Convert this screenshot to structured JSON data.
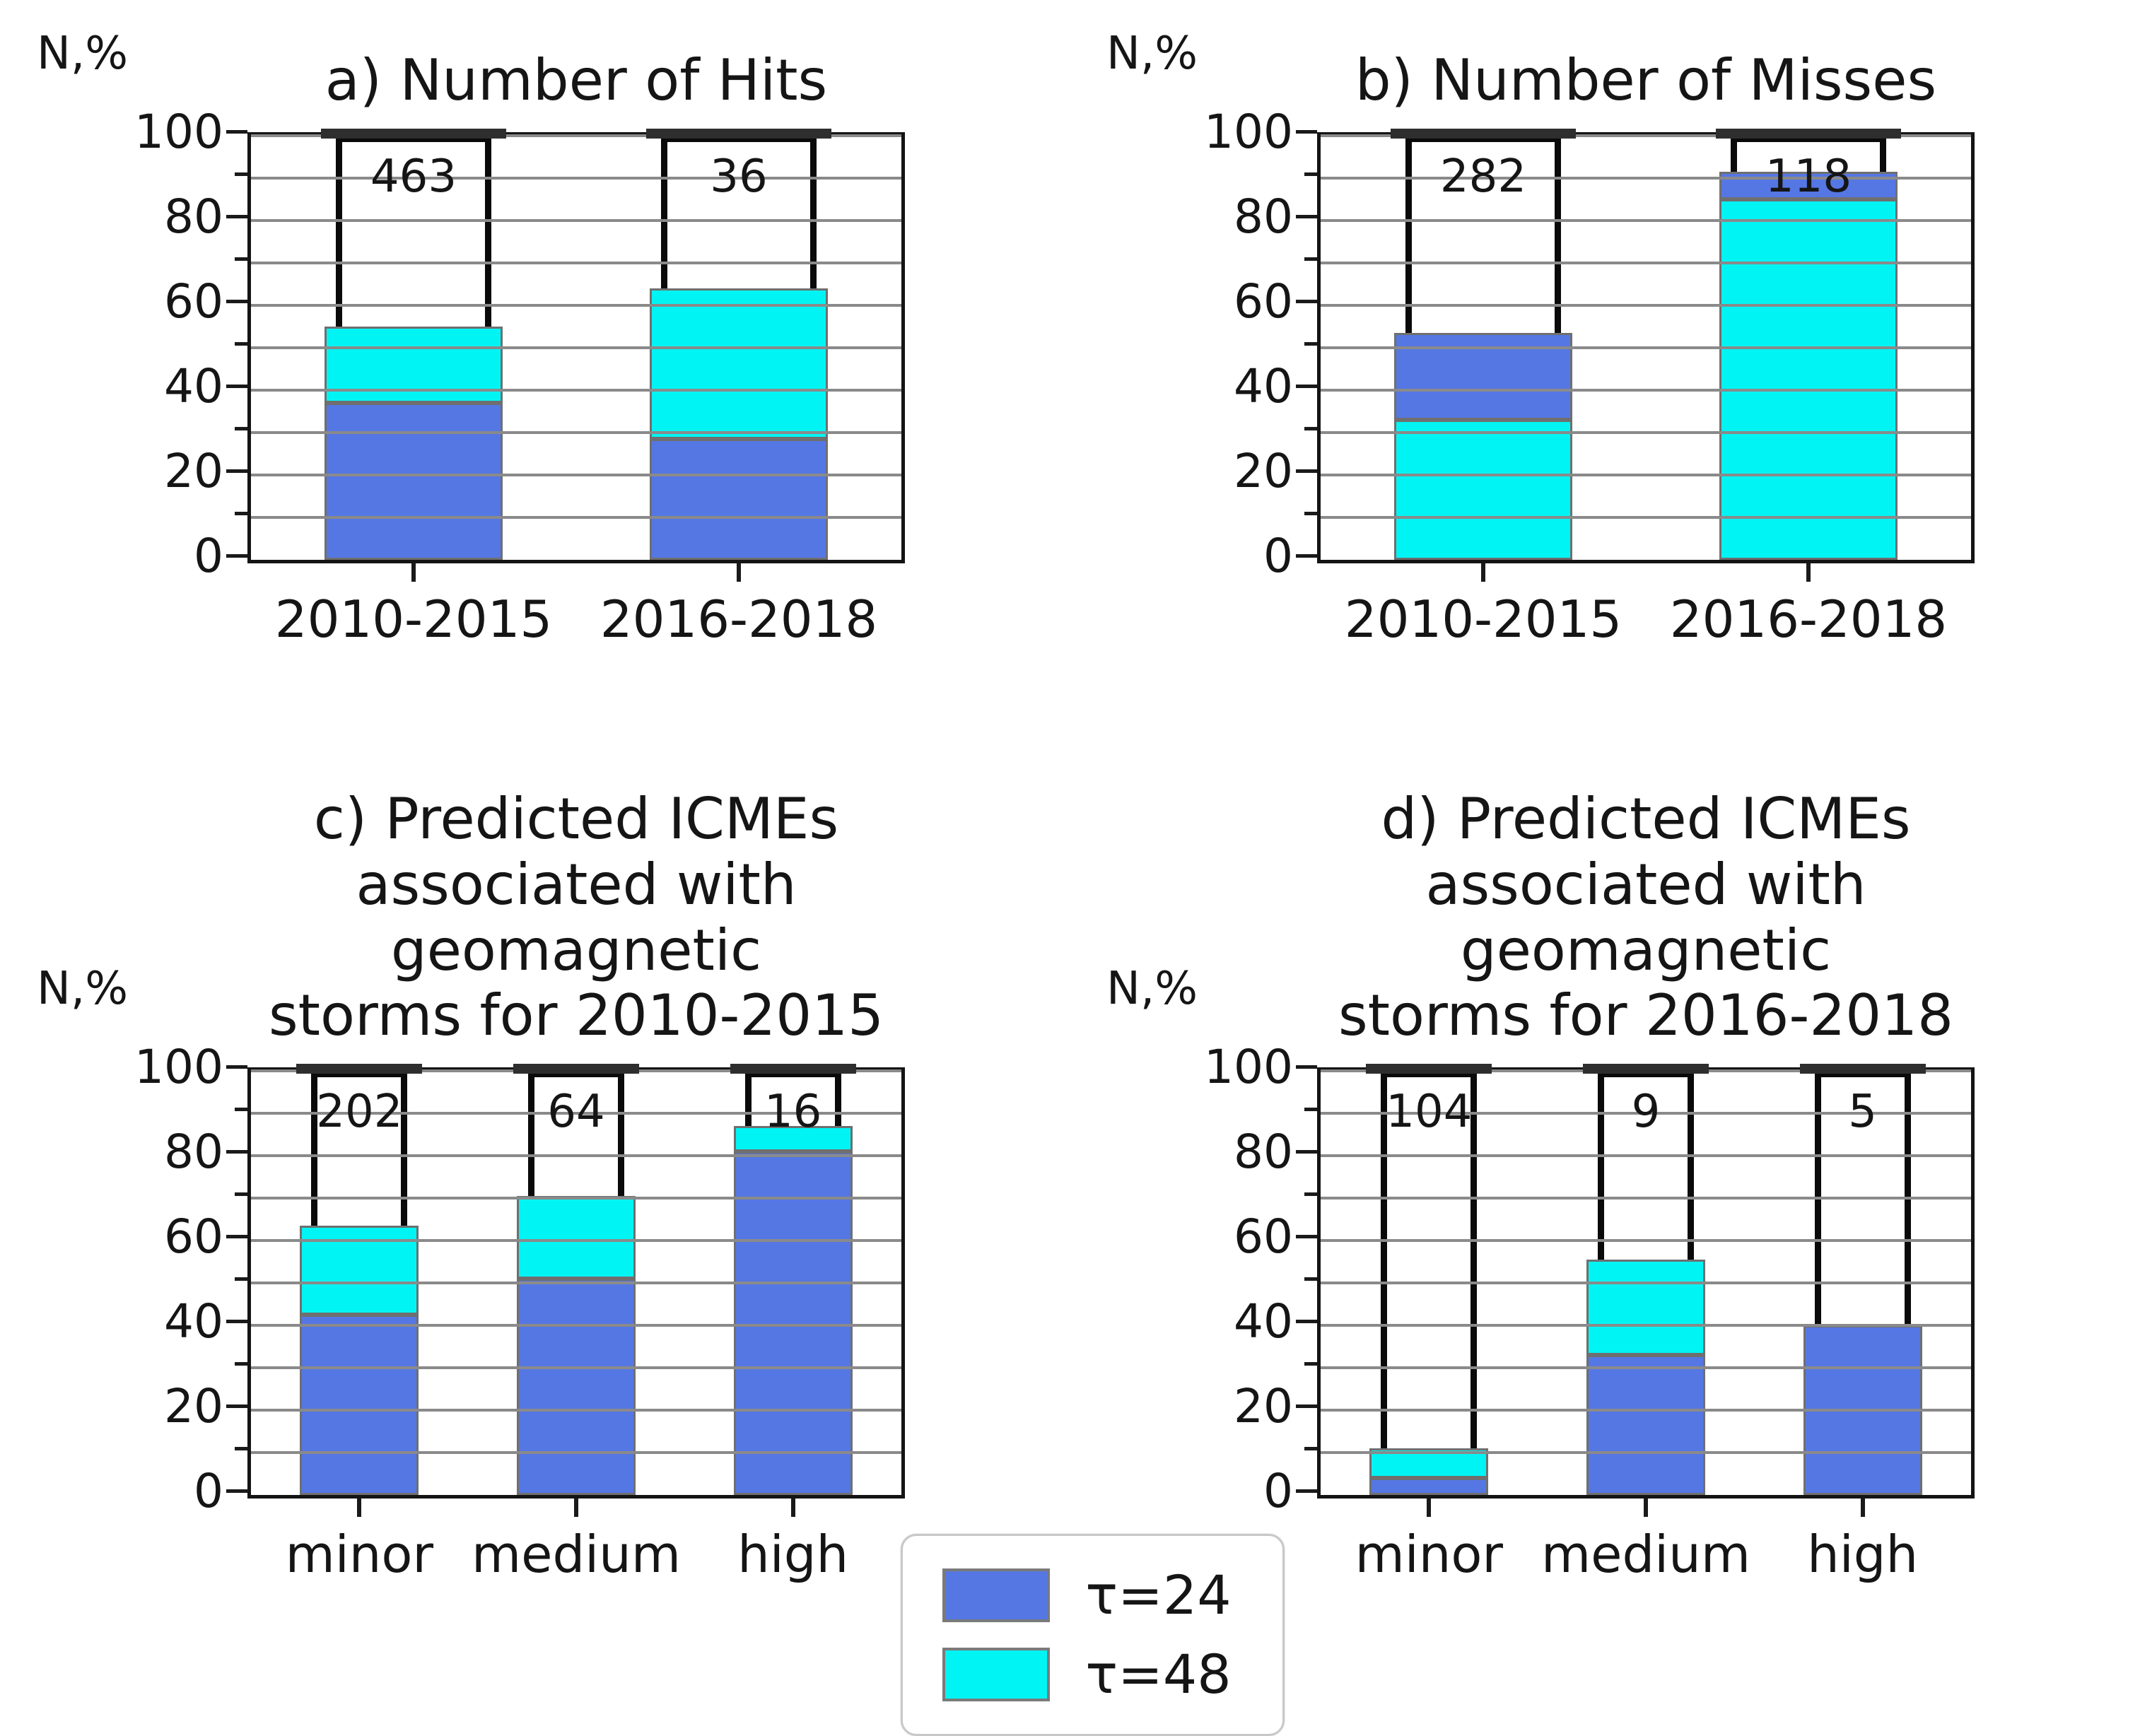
{
  "legend": {
    "items": [
      {
        "label": "τ=24",
        "color": "#5577E4"
      },
      {
        "label": "τ=48",
        "color": "#00F4F4"
      }
    ]
  },
  "style_colors": {
    "gridline": "#8a8a8a",
    "segment_edge": "#6f6f6f",
    "axes_frame": "#141414",
    "outline_bar": "#0a0a0a"
  },
  "chart_data": [
    {
      "type": "bar",
      "stacked": true,
      "title": "a) Number of Hits",
      "ylabel": "N,%",
      "ylim": [
        0,
        100
      ],
      "yticks": [
        0,
        20,
        40,
        60,
        80,
        100
      ],
      "grid_step": 10,
      "legend_position": "figure-bottom-center",
      "categories": [
        "2010-2015",
        "2016-2018"
      ],
      "bars": [
        {
          "category": "2010-2015",
          "total_count": 463,
          "segments": [
            {
              "series": "τ=24",
              "value": 37
            },
            {
              "series": "τ=48",
              "value": 18
            }
          ]
        },
        {
          "category": "2016-2018",
          "total_count": 36,
          "segments": [
            {
              "series": "τ=24",
              "value": 28.5
            },
            {
              "series": "τ=48",
              "value": 35.5
            }
          ]
        }
      ]
    },
    {
      "type": "bar",
      "stacked": true,
      "title": "b) Number of Misses",
      "ylabel": "N,%",
      "ylim": [
        0,
        100
      ],
      "yticks": [
        0,
        20,
        40,
        60,
        80,
        100
      ],
      "grid_step": 10,
      "categories": [
        "2010-2015",
        "2016-2018"
      ],
      "bars": [
        {
          "category": "2010-2015",
          "total_count": 282,
          "segments": [
            {
              "series": "τ=48",
              "value": 33
            },
            {
              "series": "τ=24",
              "value": 20.5
            }
          ]
        },
        {
          "category": "2016-2018",
          "total_count": 118,
          "segments": [
            {
              "series": "τ=48",
              "value": 85
            },
            {
              "series": "τ=24",
              "value": 6.5
            }
          ]
        }
      ]
    },
    {
      "type": "bar",
      "stacked": true,
      "title": "c) Predicted ICMEs\nassociated with geomagnetic\nstorms for 2010-2015",
      "ylabel": "N,%",
      "ylim": [
        0,
        100
      ],
      "yticks": [
        0,
        20,
        40,
        60,
        80,
        100
      ],
      "grid_step": 10,
      "categories": [
        "minor",
        "medium",
        "high"
      ],
      "bars": [
        {
          "category": "minor",
          "total_count": 202,
          "segments": [
            {
              "series": "τ=24",
              "value": 42.5
            },
            {
              "series": "τ=48",
              "value": 21
            }
          ]
        },
        {
          "category": "medium",
          "total_count": 64,
          "segments": [
            {
              "series": "τ=24",
              "value": 51
            },
            {
              "series": "τ=48",
              "value": 19.5
            }
          ]
        },
        {
          "category": "high",
          "total_count": 16,
          "segments": [
            {
              "series": "τ=24",
              "value": 81
            },
            {
              "series": "τ=48",
              "value": 6
            }
          ]
        }
      ]
    },
    {
      "type": "bar",
      "stacked": true,
      "title": "d) Predicted ICMEs\nassociated with geomagnetic\nstorms for 2016-2018",
      "ylabel": "N,%",
      "ylim": [
        0,
        100
      ],
      "yticks": [
        0,
        20,
        40,
        60,
        80,
        100
      ],
      "grid_step": 10,
      "categories": [
        "minor",
        "medium",
        "high"
      ],
      "bars": [
        {
          "category": "minor",
          "total_count": 104,
          "segments": [
            {
              "series": "τ=24",
              "value": 4
            },
            {
              "series": "τ=48",
              "value": 7
            }
          ]
        },
        {
          "category": "medium",
          "total_count": 9,
          "segments": [
            {
              "series": "τ=24",
              "value": 33
            },
            {
              "series": "τ=48",
              "value": 22.5
            }
          ]
        },
        {
          "category": "high",
          "total_count": 5,
          "segments": [
            {
              "series": "τ=24",
              "value": 40
            }
          ]
        }
      ]
    }
  ]
}
